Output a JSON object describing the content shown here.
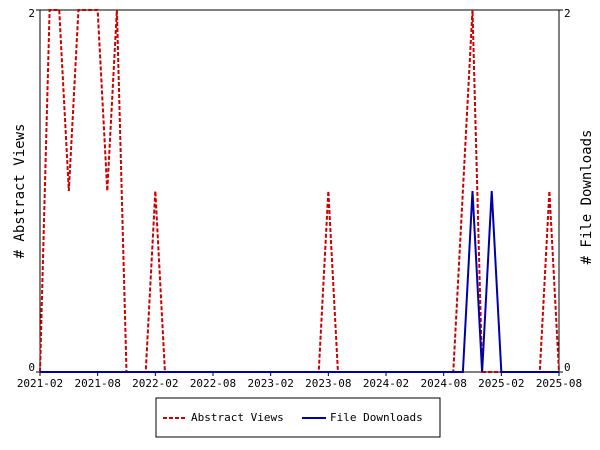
{
  "chart_data": {
    "type": "line",
    "categories": [
      "2021-02",
      null,
      null,
      null,
      null,
      null,
      "2021-08",
      null,
      null,
      null,
      null,
      null,
      "2022-02",
      null,
      null,
      null,
      null,
      null,
      "2022-08",
      null,
      null,
      null,
      null,
      null,
      "2023-02",
      null,
      null,
      null,
      null,
      null,
      "2023-08",
      null,
      null,
      null,
      null,
      null,
      "2024-02",
      null,
      null,
      null,
      null,
      null,
      "2024-08",
      null,
      null,
      null,
      null,
      null,
      "2025-02",
      null,
      null,
      null,
      null,
      null,
      "2025-08"
    ],
    "series": [
      {
        "name": "Abstract Views",
        "color": "#cc0000",
        "dash": true,
        "values": [
          0,
          2,
          2,
          1,
          2,
          2,
          2,
          1,
          2,
          0,
          0,
          0,
          1,
          0,
          0,
          0,
          0,
          0,
          0,
          0,
          0,
          0,
          0,
          0,
          0,
          0,
          0,
          0,
          0,
          0,
          1,
          0,
          0,
          0,
          0,
          0,
          0,
          0,
          0,
          0,
          0,
          0,
          0,
          0,
          1,
          2,
          0,
          0,
          0,
          0,
          0,
          0,
          0,
          1,
          0
        ]
      },
      {
        "name": "File Downloads",
        "color": "#0000aa",
        "dash": false,
        "axis": "y2",
        "values": [
          0,
          0,
          0,
          0,
          0,
          0,
          0,
          0,
          0,
          0,
          0,
          0,
          0,
          0,
          0,
          0,
          0,
          0,
          0,
          0,
          0,
          0,
          0,
          0,
          0,
          0,
          0,
          0,
          0,
          0,
          0,
          0,
          0,
          0,
          0,
          0,
          0,
          0,
          0,
          0,
          0,
          0,
          0,
          0,
          0,
          1,
          0,
          1,
          0,
          0,
          0,
          0,
          0,
          0,
          0
        ]
      }
    ],
    "y_label": "# Abstract Views",
    "y2_label": "# File Downloads",
    "ylim": [
      0,
      2
    ],
    "yticks": [
      0,
      2
    ],
    "y2lim": [
      0,
      2
    ],
    "y2ticks": [
      0,
      2
    ],
    "legend": "bottom"
  }
}
